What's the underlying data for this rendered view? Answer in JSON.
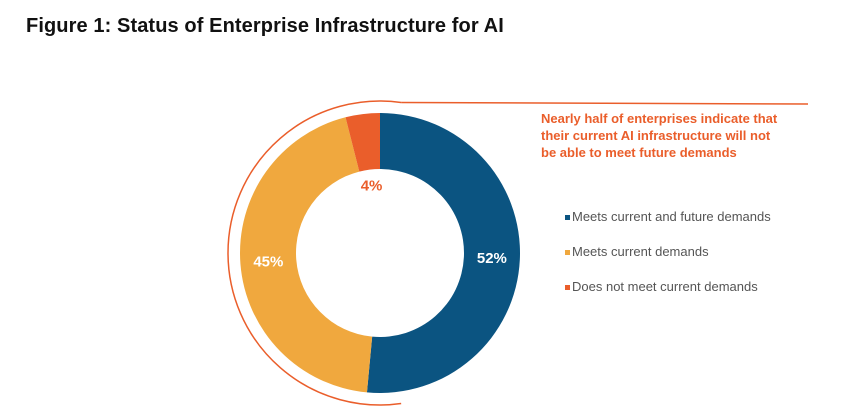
{
  "figure_title": "Figure 1: Status of Enterprise Infrastructure for AI",
  "chart_data": {
    "type": "pie",
    "subtype": "donut",
    "title": "Figure 1: Status of Enterprise Infrastructure for AI",
    "slices": [
      {
        "label": "Meets current and future demands",
        "value": 52,
        "value_label": "52%",
        "color": "#0b5481"
      },
      {
        "label": "Meets current demands",
        "value": 45,
        "value_label": "45%",
        "color": "#f0a83e"
      },
      {
        "label": "Does not meet current demands",
        "value": 4,
        "value_label": "4%",
        "color": "#ea5e2b"
      }
    ],
    "legend_position": "right",
    "annotation": {
      "lines": [
        "Nearly half of enterprises indicate that",
        "their current AI infrastructure will not",
        "be able to meet future demands"
      ],
      "color": "#ea5e2b"
    }
  }
}
